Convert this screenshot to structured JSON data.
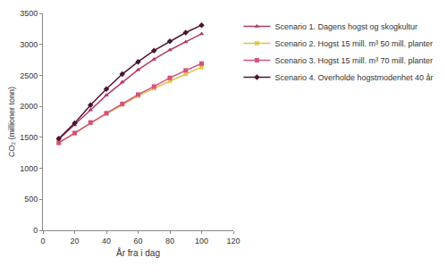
{
  "chart_data": {
    "type": "line",
    "x_label": "År fra i dag",
    "y_label": "CO₂ (millioner tonn)",
    "x": [
      10,
      20,
      30,
      40,
      50,
      60,
      70,
      80,
      90,
      100
    ],
    "series": [
      {
        "name": "Scenario 1. Dagens hogst og skogkultur",
        "color": "#b03a6a",
        "marker": "triangle-up",
        "line_style": "solid",
        "values": [
          1470,
          1700,
          1940,
          2180,
          2390,
          2590,
          2760,
          2910,
          3040,
          3170
        ]
      },
      {
        "name": "Scenario 2. Hogst 15 mill. m³ 50 mill. planter",
        "color": "#e0c24a",
        "marker": "x",
        "line_style": "solid",
        "values": [
          1420,
          1560,
          1730,
          1880,
          2030,
          2170,
          2290,
          2410,
          2520,
          2630
        ]
      },
      {
        "name": "Scenario 3. Hogst 15 mill. m³ 70 mill. planter",
        "color": "#d9507e",
        "marker": "square",
        "line_style": "solid",
        "values": [
          1410,
          1570,
          1740,
          1890,
          2040,
          2190,
          2320,
          2460,
          2580,
          2690
        ]
      },
      {
        "name": "Scenario 4. Overholde hogstmodenhet 40 år",
        "color": "#4a1434",
        "marker": "diamond",
        "line_style": "solid",
        "values": [
          1480,
          1730,
          2020,
          2280,
          2520,
          2720,
          2900,
          3050,
          3190,
          3310
        ]
      }
    ],
    "xlim": [
      0,
      120
    ],
    "xticks": [
      0,
      20,
      40,
      60,
      80,
      100,
      120
    ],
    "ylim": [
      0,
      3500
    ],
    "yticks": [
      0,
      500,
      1000,
      1500,
      2000,
      2500,
      3000,
      3500
    ],
    "grid": false,
    "legend": "right"
  }
}
